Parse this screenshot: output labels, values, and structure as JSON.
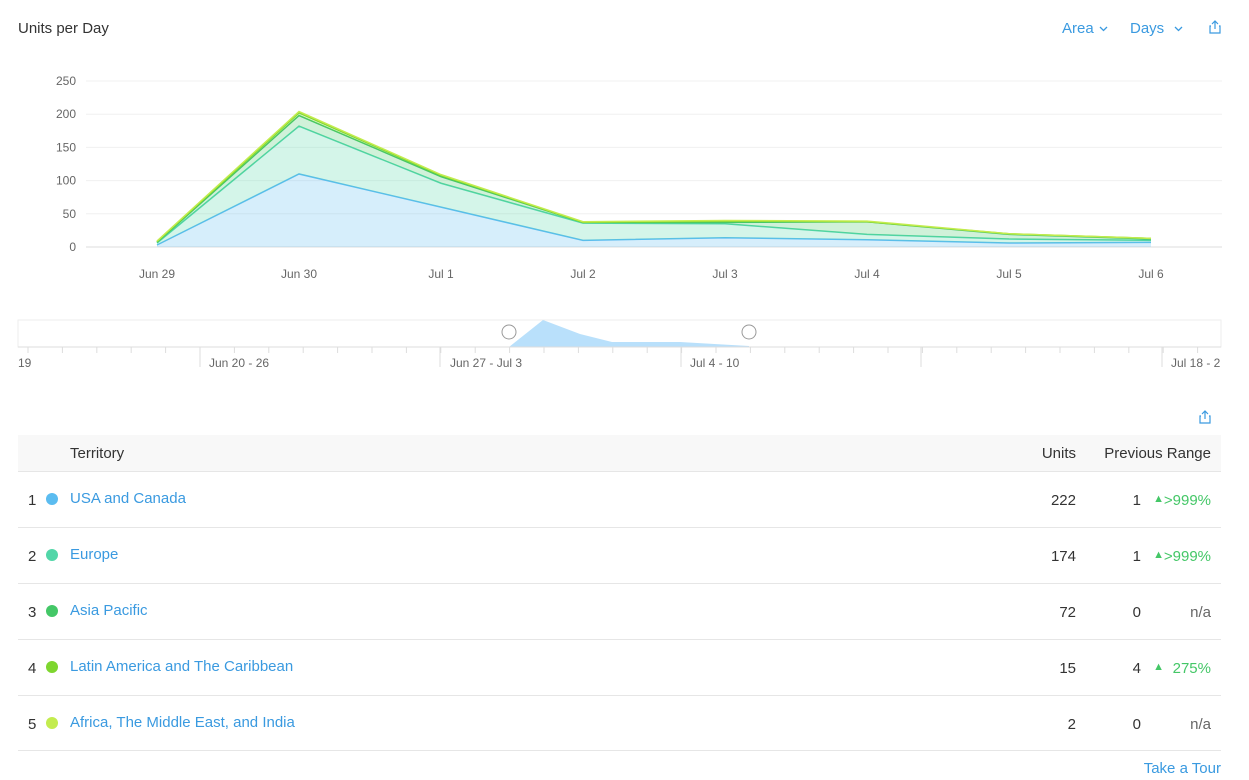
{
  "header": {
    "title": "Units per Day",
    "chart_type_dropdown": "Area",
    "granularity_dropdown": "Days"
  },
  "chart_data": {
    "type": "area",
    "stacked": true,
    "categories": [
      "Jun 29",
      "Jun 30",
      "Jul 1",
      "Jul 2",
      "Jul 3",
      "Jul 4",
      "Jul 5",
      "Jul 6"
    ],
    "yticks": [
      0,
      50,
      100,
      150,
      200,
      250
    ],
    "ylim": [
      0,
      250
    ],
    "grid": true,
    "series": [
      {
        "color": "#5bbcf0",
        "values": [
          3,
          110,
          60,
          10,
          14,
          11,
          6,
          7
        ]
      },
      {
        "color": "#52d6a8",
        "values": [
          3,
          72,
          36,
          26,
          21,
          8,
          6,
          3
        ]
      },
      {
        "color": "#44c767",
        "values": [
          1,
          16,
          10,
          1,
          2,
          19,
          7,
          2
        ]
      },
      {
        "color": "#7ed62f",
        "values": [
          1,
          4,
          2,
          0,
          2,
          0,
          1,
          1
        ]
      },
      {
        "color": "#c3ec4e",
        "values": [
          1,
          2,
          1,
          1,
          1,
          1,
          0,
          0
        ]
      }
    ]
  },
  "range_selector": {
    "labels": [
      "19",
      "Jun 20 - 26",
      "Jun 27 - Jul 3",
      "Jul 4 - 10",
      "Jul 18 - 2"
    ]
  },
  "table": {
    "headers": {
      "territory": "Territory",
      "units": "Units",
      "previous": "Previous Range"
    },
    "rows": [
      {
        "rank": "1",
        "name": "USA and Canada",
        "color": "#5bbcf0",
        "units": "222",
        "previous": "1",
        "arrow": "▲",
        "change": ">999%"
      },
      {
        "rank": "2",
        "name": "Europe",
        "color": "#52d6a8",
        "units": "174",
        "previous": "1",
        "arrow": "▲",
        "change": ">999%"
      },
      {
        "rank": "3",
        "name": "Asia Pacific",
        "color": "#44c767",
        "units": "72",
        "previous": "0",
        "arrow": "",
        "change": "n/a"
      },
      {
        "rank": "4",
        "name": "Latin America and The Caribbean",
        "color": "#7ed62f",
        "units": "15",
        "previous": "4",
        "arrow": "▲",
        "change": "275%"
      },
      {
        "rank": "5",
        "name": "Africa, The Middle East, and India",
        "color": "#c3ec4e",
        "units": "2",
        "previous": "0",
        "arrow": "",
        "change": "n/a"
      }
    ]
  },
  "footer": {
    "take_tour": "Take a Tour"
  },
  "icons": {
    "share": "share-icon",
    "dropdown": "chevron-down-icon"
  }
}
